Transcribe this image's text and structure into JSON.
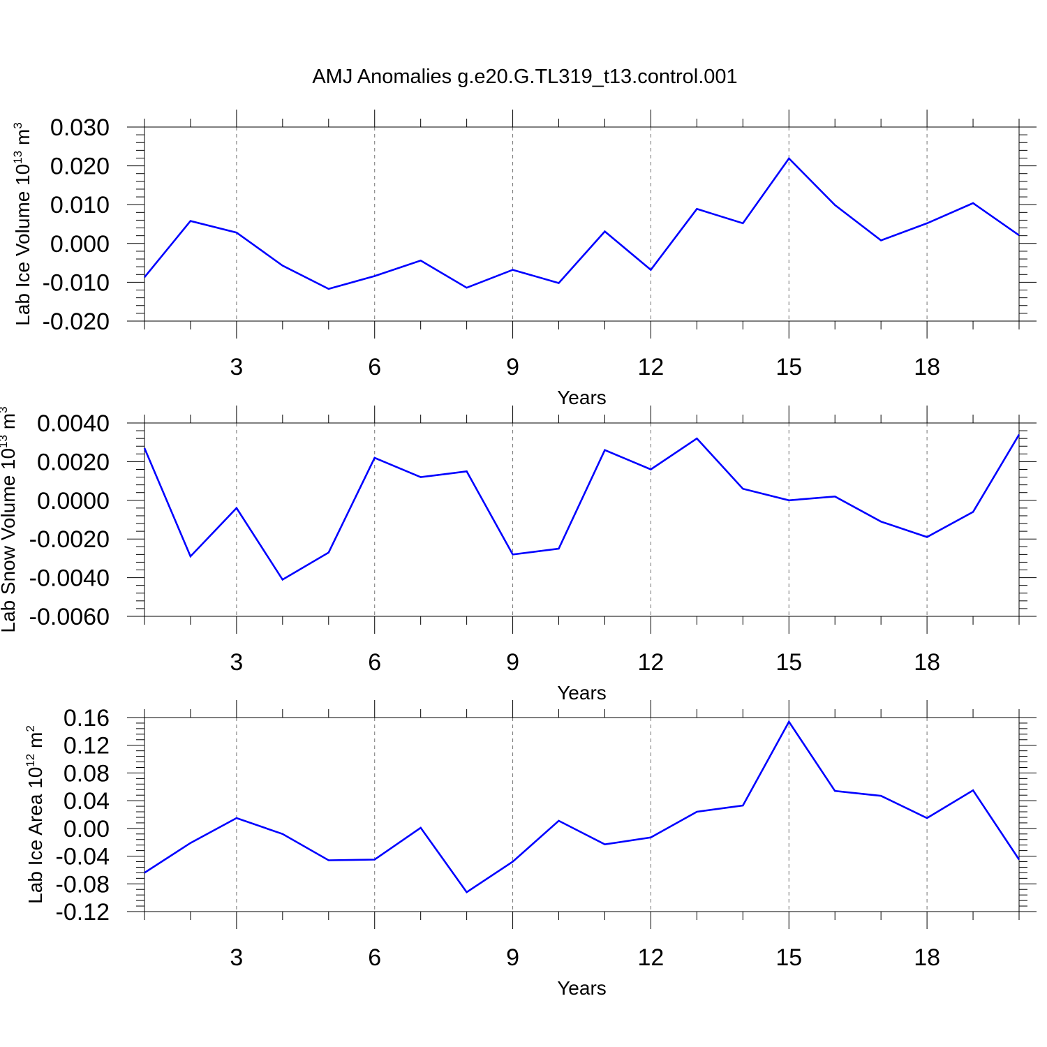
{
  "title": "AMJ Anomalies g.e20.G.TL319_t13.control.001",
  "chart_data": [
    {
      "type": "line",
      "title": "AMJ Anomalies g.e20.G.TL319_t13.control.001",
      "xlabel": "Years",
      "ylabel": {
        "prefix": "Lab Ice Volume 10",
        "exp": "13",
        "unit": " m",
        "unit_exp": "3"
      },
      "xlim": [
        1,
        20
      ],
      "ylim": [
        -0.02,
        0.03
      ],
      "xticks": [
        3,
        6,
        9,
        12,
        15,
        18
      ],
      "xtick_labels": [
        "3",
        "6",
        "9",
        "12",
        "15",
        "18"
      ],
      "yticks": [
        -0.02,
        -0.01,
        0.0,
        0.01,
        0.02,
        0.03
      ],
      "ytick_labels": [
        "-0.020",
        "-0.010",
        "0.000",
        "0.010",
        "0.020",
        "0.030"
      ],
      "grid": "x dashed",
      "color": "#0000ff",
      "series": [
        {
          "x": [
            1,
            2,
            3,
            4,
            5,
            6,
            7,
            8,
            9,
            10,
            11,
            12,
            13,
            14,
            15,
            16,
            17,
            18,
            19,
            20
          ],
          "values": [
            -0.0087,
            0.0058,
            0.0028,
            -0.0057,
            -0.0117,
            -0.0084,
            -0.0044,
            -0.0114,
            -0.0068,
            -0.0102,
            0.0031,
            -0.0068,
            0.0089,
            0.0052,
            0.0219,
            0.0099,
            0.0008,
            0.0052,
            0.0104,
            0.0021
          ]
        }
      ]
    },
    {
      "type": "line",
      "xlabel": "Years",
      "ylabel": {
        "prefix": "Lab Snow Volume 10",
        "exp": "13",
        "unit": " m",
        "unit_exp": "3"
      },
      "xlim": [
        1,
        20
      ],
      "ylim": [
        -0.006,
        0.004
      ],
      "xticks": [
        3,
        6,
        9,
        12,
        15,
        18
      ],
      "xtick_labels": [
        "3",
        "6",
        "9",
        "12",
        "15",
        "18"
      ],
      "yticks": [
        -0.006,
        -0.004,
        -0.002,
        0.0,
        0.002,
        0.004
      ],
      "ytick_labels": [
        "-0.0060",
        "-0.0040",
        "-0.0020",
        "0.0000",
        "0.0020",
        "0.0040"
      ],
      "grid": "x dashed",
      "color": "#0000ff",
      "series": [
        {
          "x": [
            1,
            2,
            3,
            4,
            5,
            6,
            7,
            8,
            9,
            10,
            11,
            12,
            13,
            14,
            15,
            16,
            17,
            18,
            19,
            20
          ],
          "values": [
            0.0027,
            -0.0029,
            -0.0004,
            -0.0041,
            -0.0027,
            0.0022,
            0.0012,
            0.0015,
            -0.0028,
            -0.0025,
            0.0026,
            0.0016,
            0.0032,
            0.0006,
            0.0,
            0.0002,
            -0.0011,
            -0.0019,
            -0.0006,
            0.0034
          ]
        }
      ]
    },
    {
      "type": "line",
      "xlabel": "Years",
      "ylabel": {
        "prefix": "Lab Ice Area 10",
        "exp": "12",
        "unit": " m",
        "unit_exp": "2"
      },
      "xlim": [
        1,
        20
      ],
      "ylim": [
        -0.12,
        0.16
      ],
      "xticks": [
        3,
        6,
        9,
        12,
        15,
        18
      ],
      "xtick_labels": [
        "3",
        "6",
        "9",
        "12",
        "15",
        "18"
      ],
      "yticks": [
        -0.12,
        -0.08,
        -0.04,
        0.0,
        0.04,
        0.08,
        0.12,
        0.16
      ],
      "ytick_labels": [
        "-0.12",
        "-0.08",
        "-0.04",
        "0.00",
        "0.04",
        "0.08",
        "0.12",
        "0.16"
      ],
      "grid": "x dashed",
      "color": "#0000ff",
      "series": [
        {
          "x": [
            1,
            2,
            3,
            4,
            5,
            6,
            7,
            8,
            9,
            10,
            11,
            12,
            13,
            14,
            15,
            16,
            17,
            18,
            19,
            20
          ],
          "values": [
            -0.064,
            -0.021,
            0.015,
            -0.008,
            -0.046,
            -0.045,
            0.001,
            -0.092,
            -0.048,
            0.011,
            -0.023,
            -0.013,
            0.024,
            0.033,
            0.154,
            0.054,
            0.047,
            0.015,
            0.055,
            -0.045
          ]
        }
      ]
    }
  ]
}
